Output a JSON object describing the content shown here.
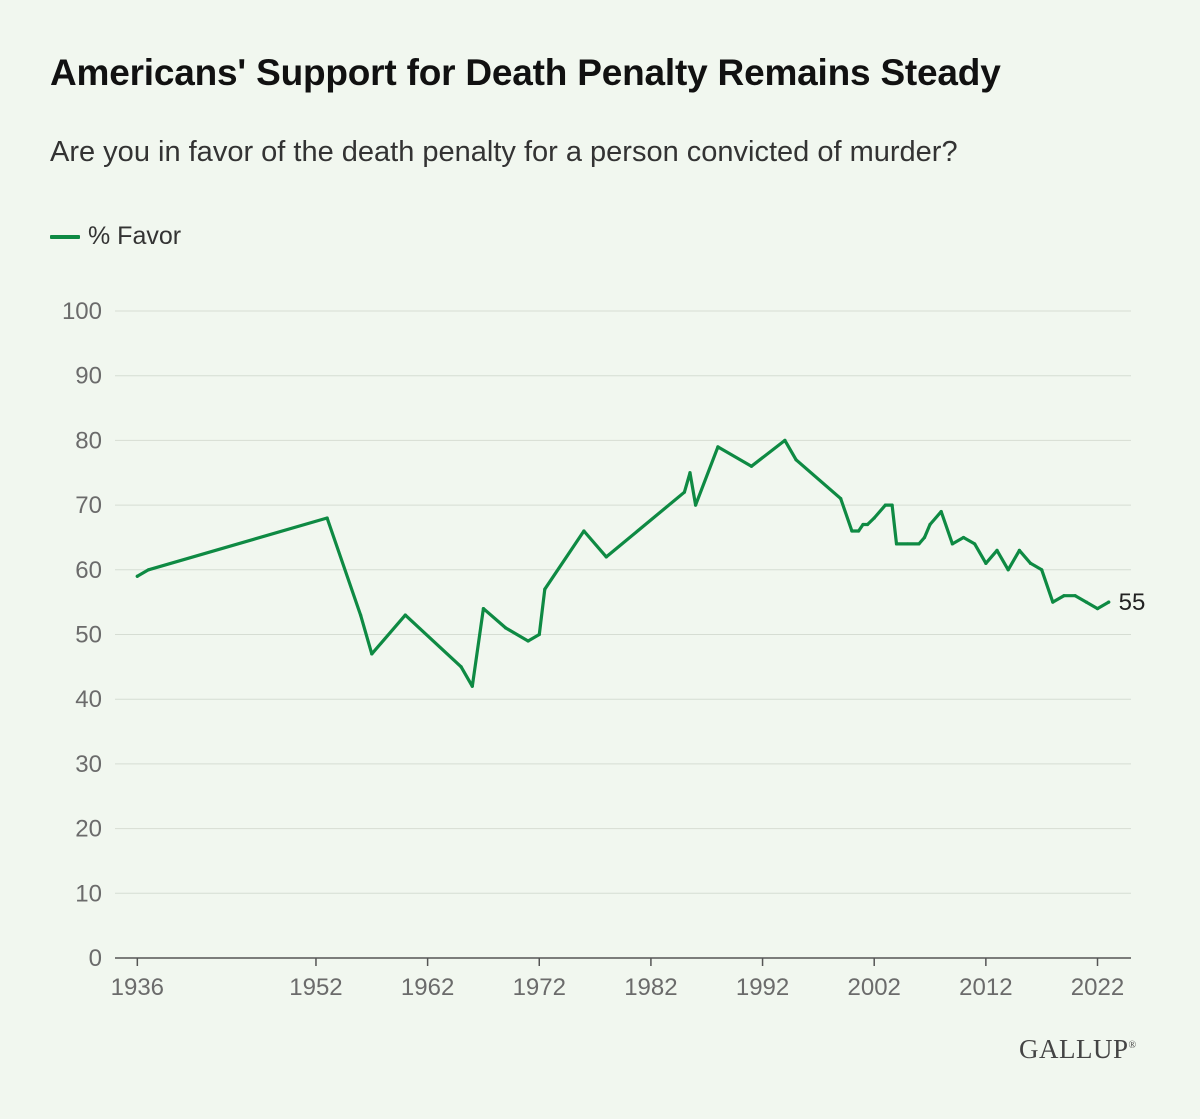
{
  "header": {
    "title": "Americans' Support for Death Penalty Remains Steady",
    "subtitle": "Are you in favor of the death penalty for a person convicted of murder?"
  },
  "brand": {
    "name": "GALLUP",
    "mark": "®"
  },
  "colors": {
    "line": "#0e8a43",
    "grid": "#d6ddd3",
    "background": "#f1f7ef"
  },
  "chart_data": {
    "type": "line",
    "title": "Americans' Support for Death Penalty Remains Steady",
    "xlabel": "",
    "ylabel": "",
    "ylim": [
      0,
      100
    ],
    "y_ticks": [
      0,
      10,
      20,
      30,
      40,
      50,
      60,
      70,
      80,
      90,
      100
    ],
    "x_ticks": [
      1936,
      1952,
      1962,
      1972,
      1982,
      1992,
      2002,
      2012,
      2022
    ],
    "grid": true,
    "legend": "top-left",
    "end_label": "55",
    "series": [
      {
        "name": "% Favor",
        "x": [
          1936,
          1937,
          1953,
          1956,
          1957,
          1960,
          1965,
          1966,
          1967,
          1969,
          1971,
          1972,
          1972.5,
          1976,
          1978,
          1985,
          1985.5,
          1986,
          1988,
          1991,
          1994,
          1995,
          1999,
          2000,
          2000.6,
          2001,
          2001.4,
          2002,
          2003,
          2003.6,
          2004,
          2005,
          2006,
          2006.5,
          2007,
          2008,
          2009,
          2010,
          2011,
          2012,
          2013,
          2014,
          2015,
          2016,
          2017,
          2018,
          2019,
          2020,
          2021,
          2022,
          2023
        ],
        "y": [
          59,
          60,
          68,
          53,
          47,
          53,
          45,
          42,
          54,
          51,
          49,
          50,
          57,
          66,
          62,
          72,
          75,
          70,
          79,
          76,
          80,
          77,
          71,
          66,
          66,
          67,
          67,
          68,
          70,
          70,
          64,
          64,
          64,
          65,
          67,
          69,
          64,
          65,
          64,
          61,
          63,
          60,
          63,
          61,
          60,
          55,
          56,
          56,
          55,
          54,
          55
        ]
      }
    ]
  }
}
